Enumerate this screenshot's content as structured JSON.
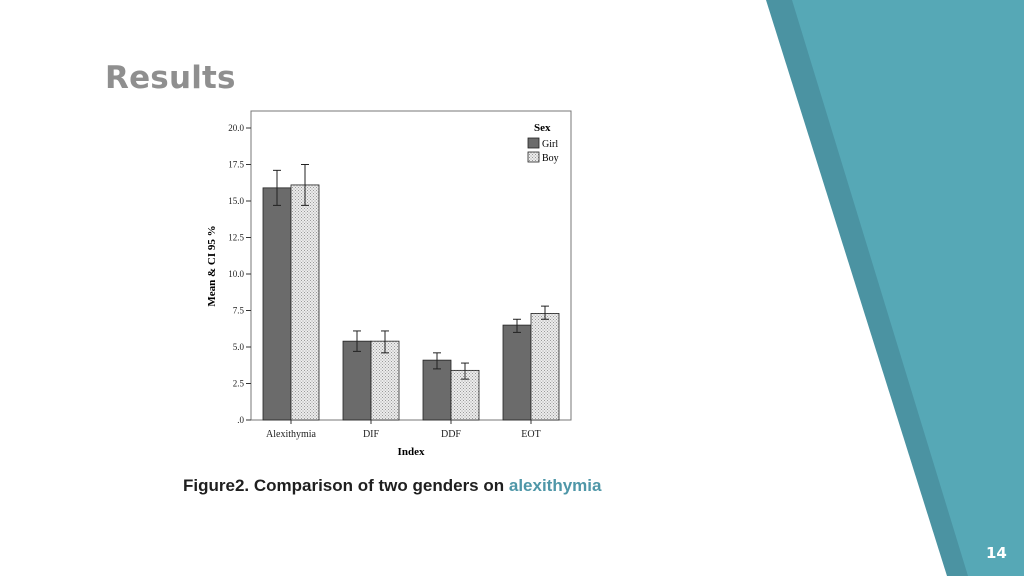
{
  "slide": {
    "title": "Results",
    "caption_main": "Figure2. Comparison of two genders on ",
    "caption_highlight": "alexithymia",
    "page_number": "14"
  },
  "colors": {
    "accent": "#54a6b5",
    "accent_dark": "#4b93a2",
    "girl_bar": "#6b6b6b",
    "boy_bar": "#d8d8d8",
    "caption_highlight": "#4f97a8",
    "title": "#8f8f8f"
  },
  "chart_data": {
    "type": "bar",
    "categories": [
      "Alexithymia",
      "DIF",
      "DDF",
      "EOT"
    ],
    "series": [
      {
        "name": "Girl",
        "values": [
          15.9,
          5.4,
          4.1,
          6.5
        ],
        "ci_low": [
          14.7,
          4.7,
          3.5,
          6.0
        ],
        "ci_high": [
          17.1,
          6.1,
          4.6,
          6.9
        ]
      },
      {
        "name": "Boy",
        "values": [
          16.1,
          5.4,
          3.4,
          7.3
        ],
        "ci_low": [
          14.7,
          4.6,
          2.8,
          6.9
        ],
        "ci_high": [
          17.5,
          6.1,
          3.9,
          7.8
        ]
      }
    ],
    "xlabel": "Index",
    "ylabel": "Mean & CI 95 %",
    "ylim": [
      0,
      20
    ],
    "yticks": [
      ".0",
      "2.5",
      "5.0",
      "7.5",
      "10.0",
      "12.5",
      "15.0",
      "17.5",
      "20.0"
    ],
    "legend": {
      "title": "Sex",
      "position": "top-right"
    },
    "grid": false
  }
}
